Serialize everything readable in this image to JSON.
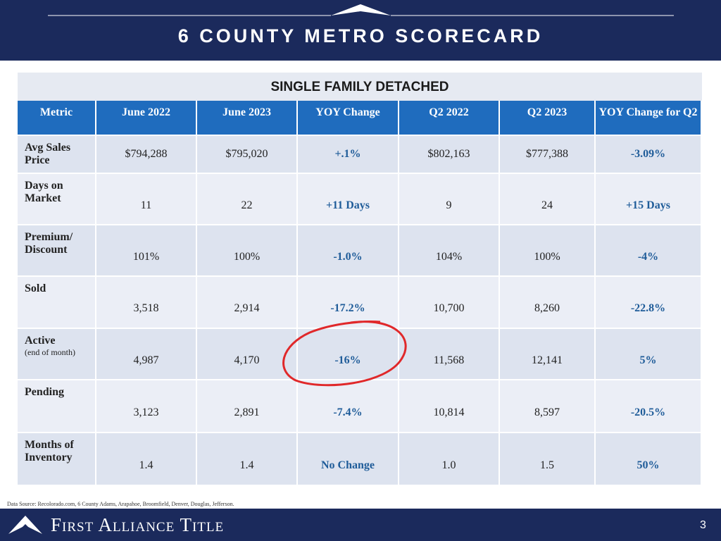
{
  "header": {
    "title": "6 COUNTY METRO SCORECARD"
  },
  "table": {
    "caption": "SINGLE FAMILY DETACHED",
    "columns": [
      "Metric",
      "June 2022",
      "June 2023",
      "YOY Change",
      "Q2 2022",
      "Q2 2023",
      "YOY  Change for Q2"
    ],
    "rows": [
      {
        "metric": "Avg Sales Price",
        "cells": [
          "$794,288",
          "$795,020",
          "+.1%",
          "$802,163",
          "$777,388",
          "-3.09%"
        ]
      },
      {
        "metric": "Days on Market",
        "cells": [
          "11",
          "22",
          "+11 Days",
          "9",
          "24",
          "+15 Days"
        ]
      },
      {
        "metric": "Premium/ Discount",
        "cells": [
          "101%",
          "100%",
          "-1.0%",
          "104%",
          "100%",
          "-4%"
        ]
      },
      {
        "metric": "Sold",
        "cells": [
          "3,518",
          "2,914",
          "-17.2%",
          "10,700",
          "8,260",
          "-22.8%"
        ]
      },
      {
        "metric": "Active",
        "metric_note": "(end of month)",
        "cells": [
          "4,987",
          "4,170",
          "-16%",
          "11,568",
          "12,141",
          "5%"
        ]
      },
      {
        "metric": "Pending",
        "cells": [
          "3,123",
          "2,891",
          "-7.4%",
          "10,814",
          "8,597",
          "-20.5%"
        ]
      },
      {
        "metric": "Months of Inventory",
        "cells": [
          "1.4",
          "1.4",
          "No Change",
          "1.0",
          "1.5",
          "50%"
        ]
      }
    ]
  },
  "footer": {
    "source": "Data Source: Recolorado.com, 6 County Adams, Arapahoe, Broomfield, Denver, Douglas, Jefferson.",
    "brand": "First Alliance Title",
    "page": "3"
  }
}
